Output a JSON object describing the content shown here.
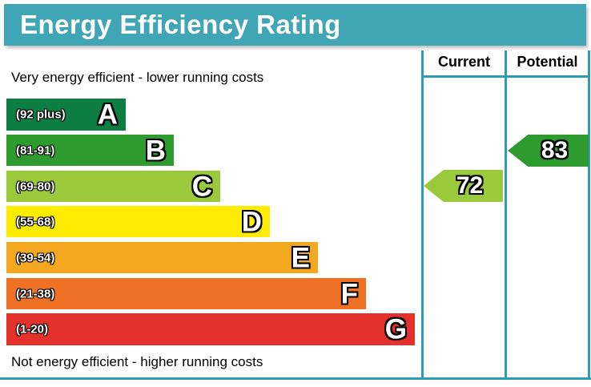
{
  "title": "Energy Efficiency Rating",
  "header": {
    "current": "Current",
    "potential": "Potential"
  },
  "notes": {
    "top": "Very energy efficient - lower running costs",
    "bottom": "Not energy efficient - higher running costs"
  },
  "bands": [
    {
      "letter": "A",
      "range": "(92 plus)",
      "color": "#0c7e43"
    },
    {
      "letter": "B",
      "range": "(81-91)",
      "color": "#2e9b2e"
    },
    {
      "letter": "C",
      "range": "(69-80)",
      "color": "#9aca3c"
    },
    {
      "letter": "D",
      "range": "(55-68)",
      "color": "#ffec00"
    },
    {
      "letter": "E",
      "range": "(39-54)",
      "color": "#f3a81f"
    },
    {
      "letter": "F",
      "range": "(21-38)",
      "color": "#ee7126"
    },
    {
      "letter": "G",
      "range": "(1-20)",
      "color": "#e4312b"
    }
  ],
  "ratings": {
    "current": {
      "value": "72",
      "band": "C",
      "color": "#9aca3c"
    },
    "potential": {
      "value": "83",
      "band": "B",
      "color": "#2e9b2e"
    }
  },
  "colors": {
    "title_bg": "#40a5b4",
    "title_text": "#ffffff",
    "border": "#2d9db2",
    "text": "#000000"
  },
  "chart_data": {
    "type": "bar",
    "title": "Energy Efficiency Rating",
    "orientation": "horizontal",
    "categories": [
      "A",
      "B",
      "C",
      "D",
      "E",
      "F",
      "G"
    ],
    "band_ranges": [
      "92 plus",
      "81-91",
      "69-80",
      "55-68",
      "39-54",
      "21-38",
      "1-20"
    ],
    "band_colors": [
      "#0c7e43",
      "#2e9b2e",
      "#9aca3c",
      "#ffec00",
      "#f3a81f",
      "#ee7126",
      "#e4312b"
    ],
    "bar_relative_widths": [
      149,
      209,
      267,
      329,
      389,
      449,
      510
    ],
    "markers": {
      "current": {
        "value": 72,
        "band": "C"
      },
      "potential": {
        "value": 83,
        "band": "B"
      }
    },
    "columns": [
      "Current",
      "Potential"
    ],
    "annotations": [
      "Very energy efficient - lower running costs",
      "Not energy efficient - higher running costs"
    ],
    "grid": false,
    "legend_position": "top-right-columns"
  }
}
